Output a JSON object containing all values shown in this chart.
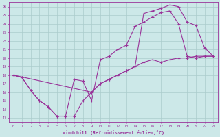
{
  "xlabel": "Windchill (Refroidissement éolien,°C)",
  "bg_color": "#cce8e8",
  "line_color": "#993399",
  "xlim": [
    -0.5,
    23.5
  ],
  "ylim": [
    12.5,
    26.5
  ],
  "xticks": [
    0,
    1,
    2,
    3,
    4,
    5,
    6,
    7,
    8,
    9,
    10,
    11,
    12,
    13,
    14,
    15,
    16,
    17,
    18,
    19,
    20,
    21,
    22,
    23
  ],
  "yticks": [
    13,
    14,
    15,
    16,
    17,
    18,
    19,
    20,
    21,
    22,
    23,
    24,
    25,
    26
  ],
  "grid_color": "#aacccc",
  "series": [
    {
      "x": [
        0,
        1,
        2,
        3,
        4,
        5,
        6,
        7,
        8,
        9,
        10,
        11,
        12,
        13,
        14,
        15,
        16,
        17,
        18,
        19,
        20,
        21,
        22,
        23
      ],
      "y": [
        18.0,
        17.7,
        16.2,
        15.0,
        14.3,
        13.2,
        13.2,
        13.2,
        15.0,
        16.0,
        17.0,
        17.5,
        18.0,
        18.5,
        19.0,
        19.5,
        19.8,
        19.5,
        19.8,
        20.0,
        20.0,
        20.2,
        20.2,
        20.2
      ]
    },
    {
      "x": [
        0,
        1,
        2,
        3,
        4,
        5,
        6,
        7,
        8,
        9,
        10,
        11,
        12,
        13,
        14,
        15,
        16,
        17,
        18,
        19,
        20,
        21,
        22,
        23
      ],
      "y": [
        18.0,
        17.7,
        16.2,
        15.0,
        14.3,
        13.2,
        13.2,
        17.5,
        17.3,
        15.0,
        19.8,
        20.2,
        21.0,
        21.5,
        23.7,
        24.2,
        24.8,
        25.3,
        25.5,
        24.0,
        20.2,
        20.0,
        20.2,
        20.2
      ]
    },
    {
      "x": [
        0,
        9,
        10,
        11,
        12,
        13,
        14,
        15,
        16,
        17,
        18,
        19,
        20,
        21,
        22,
        23
      ],
      "y": [
        18.0,
        16.0,
        17.0,
        17.5,
        18.0,
        18.5,
        19.0,
        25.2,
        25.5,
        25.8,
        26.2,
        26.0,
        24.2,
        23.8,
        21.2,
        20.2
      ]
    }
  ]
}
